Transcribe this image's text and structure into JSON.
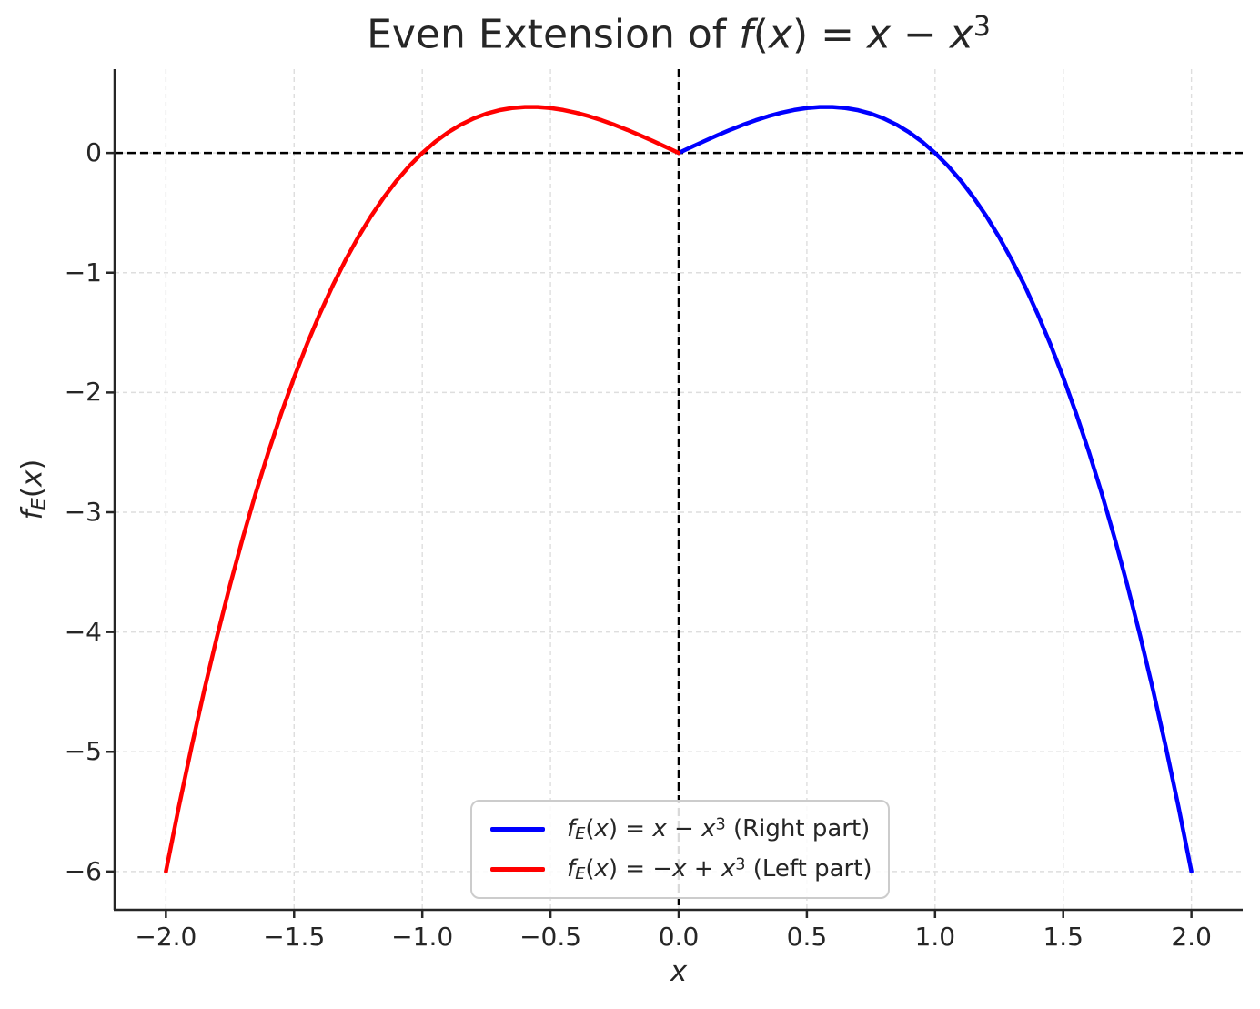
{
  "figure": {
    "background": "#ffffff",
    "text_color": "#262626"
  },
  "title": {
    "text": "Even Extension of f(x) = x − x³",
    "segments": [
      {
        "t": "Even Extension of ",
        "s": "rm"
      },
      {
        "t": "f",
        "s": "it"
      },
      {
        "t": "(",
        "s": "rm"
      },
      {
        "t": "x",
        "s": "it"
      },
      {
        "t": ") = ",
        "s": "rm"
      },
      {
        "t": "x",
        "s": "it"
      },
      {
        "t": " − ",
        "s": "rm"
      },
      {
        "t": "x",
        "s": "it"
      },
      {
        "t": "3",
        "s": "sup"
      }
    ]
  },
  "xlabel": {
    "text": "x",
    "segments": [
      {
        "t": "x",
        "s": "it"
      }
    ]
  },
  "ylabel": {
    "text": "f_E(x)",
    "segments": [
      {
        "t": "f",
        "s": "it"
      },
      {
        "t": "E",
        "s": "it-sub"
      },
      {
        "t": "(",
        "s": "rm"
      },
      {
        "t": "x",
        "s": "it"
      },
      {
        "t": ")",
        "s": "rm"
      }
    ]
  },
  "legend": {
    "position": "lower center",
    "border_color": "#cccccc",
    "items": [
      {
        "label": "f_E(x) = x − x³ (Right part)",
        "color": "#0000ff",
        "segments": [
          {
            "t": "f",
            "s": "it"
          },
          {
            "t": "E",
            "s": "it-sub"
          },
          {
            "t": "(",
            "s": "rm"
          },
          {
            "t": "x",
            "s": "it"
          },
          {
            "t": ") = ",
            "s": "rm"
          },
          {
            "t": "x",
            "s": "it"
          },
          {
            "t": " − ",
            "s": "rm"
          },
          {
            "t": "x",
            "s": "it"
          },
          {
            "t": "3",
            "s": "sup"
          },
          {
            "t": " (Right part)",
            "s": "rm"
          }
        ]
      },
      {
        "label": "f_E(x) = −x + x³ (Left part)",
        "color": "#ff0000",
        "segments": [
          {
            "t": "f",
            "s": "it"
          },
          {
            "t": "E",
            "s": "it-sub"
          },
          {
            "t": "(",
            "s": "rm"
          },
          {
            "t": "x",
            "s": "it"
          },
          {
            "t": ") = −",
            "s": "rm"
          },
          {
            "t": "x",
            "s": "it"
          },
          {
            "t": " + ",
            "s": "rm"
          },
          {
            "t": "x",
            "s": "it"
          },
          {
            "t": "3",
            "s": "sup"
          },
          {
            "t": " (Left part)",
            "s": "rm"
          }
        ]
      }
    ]
  },
  "chart_data": {
    "type": "line",
    "title": "Even Extension of f(x) = x − x³",
    "xlabel": "x",
    "ylabel": "f_E(x)",
    "xlim": [
      -2.2,
      2.2
    ],
    "ylim": [
      -6.32,
      0.7
    ],
    "xticks": {
      "values": [
        -2,
        -1.5,
        -1,
        -0.5,
        0,
        0.5,
        1,
        1.5,
        2
      ],
      "labels": [
        "−2.0",
        "−1.5",
        "−1.0",
        "−0.5",
        "0.0",
        "0.5",
        "1.0",
        "1.5",
        "2.0"
      ]
    },
    "yticks": {
      "values": [
        0,
        -1,
        -2,
        -3,
        -4,
        -5,
        -6
      ],
      "labels": [
        "0",
        "−1",
        "−2",
        "−3",
        "−4",
        "−5",
        "−6"
      ]
    },
    "grid": {
      "visible": true,
      "style": "dashed",
      "color": "#dedede"
    },
    "reference_lines": [
      {
        "axis": "y",
        "value": 0,
        "style": "dashed",
        "color": "#000000"
      },
      {
        "axis": "x",
        "value": 0,
        "style": "dashed",
        "color": "#000000"
      }
    ],
    "spine_color": "#262626",
    "legend_position": "lower center",
    "series": [
      {
        "name": "f_E(x) = x − x³ (Right part)",
        "color": "#0000ff",
        "points": [
          [
            0,
            0
          ],
          [
            0.05,
            0.0499
          ],
          [
            0.1,
            0.099
          ],
          [
            0.15,
            0.1466
          ],
          [
            0.2,
            0.192
          ],
          [
            0.25,
            0.2344
          ],
          [
            0.3,
            0.273
          ],
          [
            0.35,
            0.3071
          ],
          [
            0.4,
            0.336
          ],
          [
            0.45,
            0.3589
          ],
          [
            0.5,
            0.375
          ],
          [
            0.55,
            0.3836
          ],
          [
            0.6,
            0.384
          ],
          [
            0.65,
            0.3754
          ],
          [
            0.7,
            0.357
          ],
          [
            0.75,
            0.3281
          ],
          [
            0.8,
            0.288
          ],
          [
            0.85,
            0.2359
          ],
          [
            0.9,
            0.171
          ],
          [
            0.95,
            0.0926
          ],
          [
            1,
            0
          ],
          [
            1.05,
            -0.1076
          ],
          [
            1.1,
            -0.231
          ],
          [
            1.15,
            -0.3709
          ],
          [
            1.2,
            -0.528
          ],
          [
            1.25,
            -0.7031
          ],
          [
            1.3,
            -0.897
          ],
          [
            1.35,
            -1.1104
          ],
          [
            1.4,
            -1.344
          ],
          [
            1.45,
            -1.5986
          ],
          [
            1.5,
            -1.875
          ],
          [
            1.55,
            -2.1739
          ],
          [
            1.6,
            -2.496
          ],
          [
            1.65,
            -2.8421
          ],
          [
            1.7,
            -3.213
          ],
          [
            1.75,
            -3.6094
          ],
          [
            1.8,
            -4.032
          ],
          [
            1.85,
            -4.4816
          ],
          [
            1.9,
            -4.959
          ],
          [
            1.95,
            -5.4649
          ],
          [
            2,
            -6
          ]
        ]
      },
      {
        "name": "f_E(x) = −x + x³ (Left part)",
        "color": "#ff0000",
        "points": [
          [
            -2,
            -6
          ],
          [
            -1.95,
            -5.4649
          ],
          [
            -1.9,
            -4.959
          ],
          [
            -1.85,
            -4.4816
          ],
          [
            -1.8,
            -4.032
          ],
          [
            -1.75,
            -3.6094
          ],
          [
            -1.7,
            -3.213
          ],
          [
            -1.65,
            -2.8421
          ],
          [
            -1.6,
            -2.496
          ],
          [
            -1.55,
            -2.1739
          ],
          [
            -1.5,
            -1.875
          ],
          [
            -1.45,
            -1.5986
          ],
          [
            -1.4,
            -1.344
          ],
          [
            -1.35,
            -1.1104
          ],
          [
            -1.3,
            -0.897
          ],
          [
            -1.25,
            -0.7031
          ],
          [
            -1.2,
            -0.528
          ],
          [
            -1.15,
            -0.3709
          ],
          [
            -1.1,
            -0.231
          ],
          [
            -1.05,
            -0.1076
          ],
          [
            -1,
            0
          ],
          [
            -0.95,
            0.0926
          ],
          [
            -0.9,
            0.171
          ],
          [
            -0.85,
            0.2359
          ],
          [
            -0.8,
            0.288
          ],
          [
            -0.75,
            0.3281
          ],
          [
            -0.7,
            0.357
          ],
          [
            -0.65,
            0.3754
          ],
          [
            -0.6,
            0.384
          ],
          [
            -0.55,
            0.3836
          ],
          [
            -0.5,
            0.375
          ],
          [
            -0.45,
            0.3589
          ],
          [
            -0.4,
            0.336
          ],
          [
            -0.35,
            0.3071
          ],
          [
            -0.3,
            0.273
          ],
          [
            -0.25,
            0.2344
          ],
          [
            -0.2,
            0.192
          ],
          [
            -0.15,
            0.1466
          ],
          [
            -0.1,
            0.099
          ],
          [
            -0.05,
            0.0499
          ],
          [
            0,
            0
          ]
        ]
      }
    ]
  }
}
